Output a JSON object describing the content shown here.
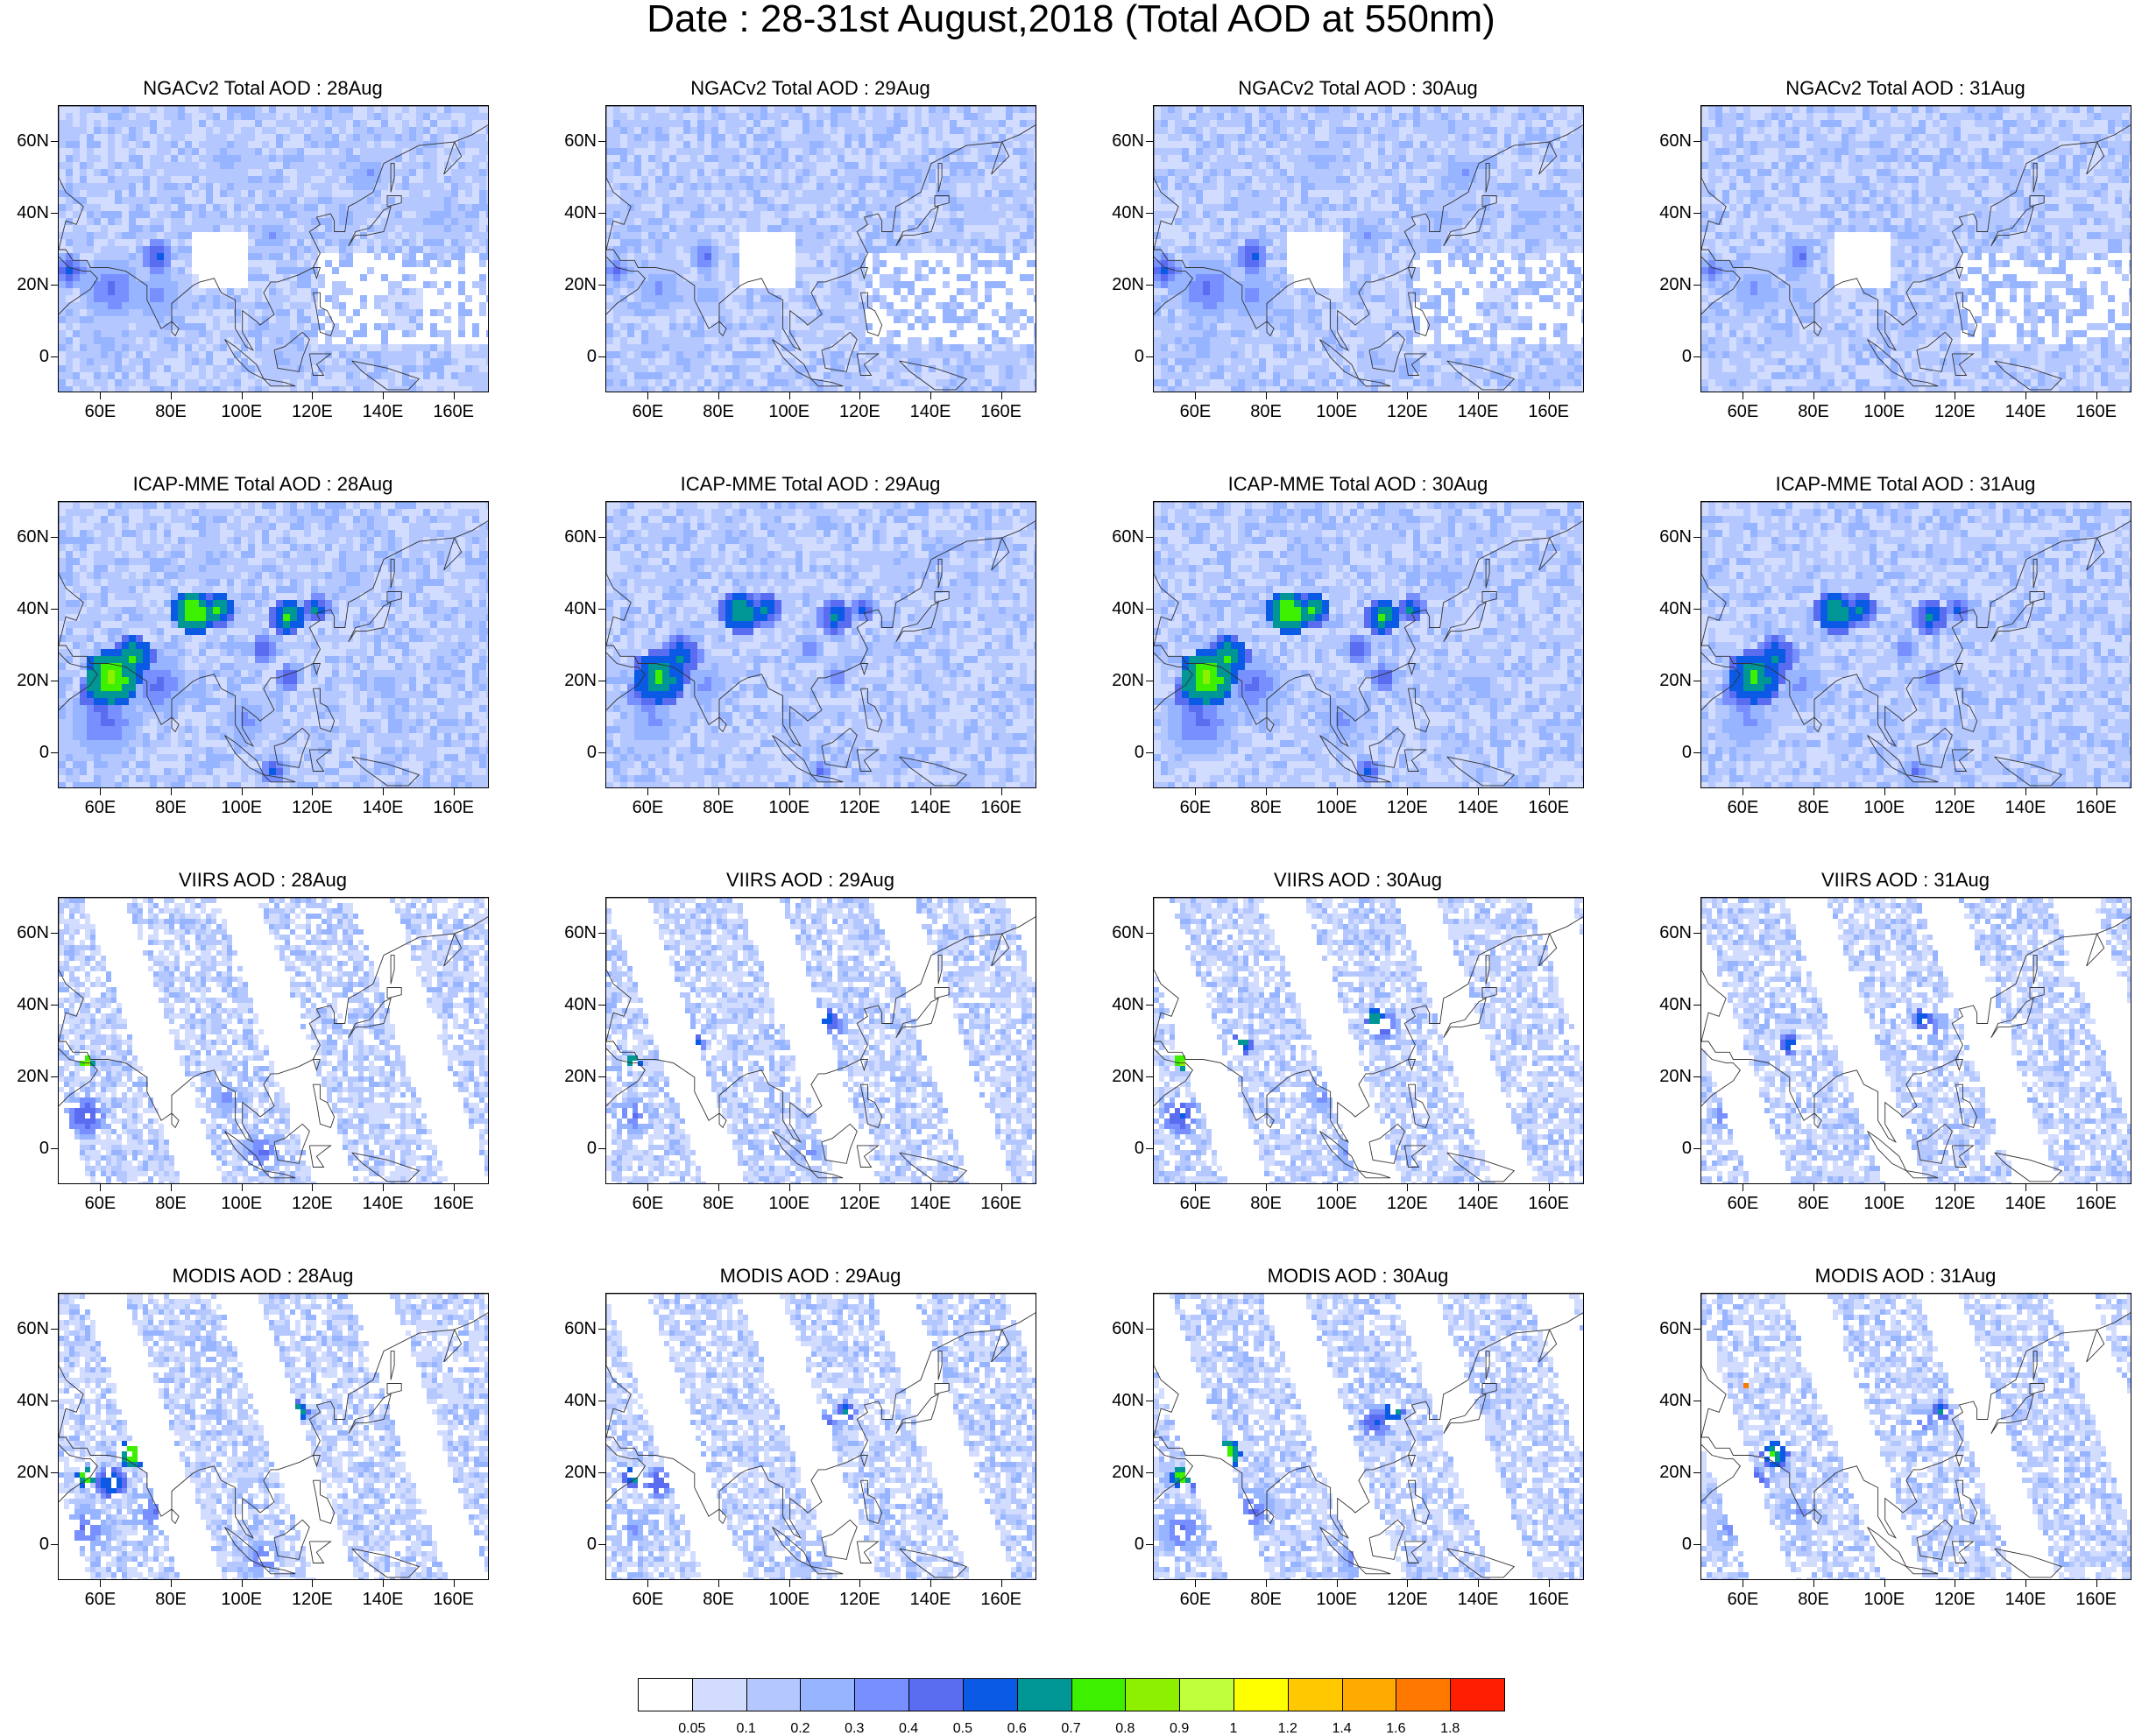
{
  "title": "Date : 28-31st August,2018 (Total AOD at 550nm)",
  "rows": [
    {
      "dataset": "NGACv2",
      "panels": [
        {
          "title": "NGACv2 Total AOD : 28Aug"
        },
        {
          "title": "NGACv2 Total AOD : 29Aug"
        },
        {
          "title": "NGACv2 Total AOD : 30Aug"
        },
        {
          "title": "NGACv2 Total AOD : 31Aug"
        }
      ]
    },
    {
      "dataset": "ICAP-MME",
      "panels": [
        {
          "title": "ICAP-MME Total AOD : 28Aug"
        },
        {
          "title": "ICAP-MME Total AOD : 29Aug"
        },
        {
          "title": "ICAP-MME Total AOD : 30Aug"
        },
        {
          "title": "ICAP-MME Total AOD : 31Aug"
        }
      ]
    },
    {
      "dataset": "VIIRS",
      "panels": [
        {
          "title": "VIIRS AOD : 28Aug"
        },
        {
          "title": "VIIRS AOD : 29Aug"
        },
        {
          "title": "VIIRS AOD : 30Aug"
        },
        {
          "title": "VIIRS AOD : 31Aug"
        }
      ]
    },
    {
      "dataset": "MODIS",
      "panels": [
        {
          "title": "MODIS AOD : 28Aug"
        },
        {
          "title": "MODIS AOD : 29Aug"
        },
        {
          "title": "MODIS AOD : 30Aug"
        },
        {
          "title": "MODIS AOD : 31Aug"
        }
      ]
    }
  ],
  "map_extent": {
    "lon": [
      48,
      170
    ],
    "lat": [
      -10,
      70
    ]
  },
  "lat_ticks": [
    {
      "value": 60,
      "label": "60N"
    },
    {
      "value": 40,
      "label": "40N"
    },
    {
      "value": 20,
      "label": "20N"
    },
    {
      "value": 0,
      "label": "0"
    }
  ],
  "lon_ticks": [
    {
      "value": 60,
      "label": "60E"
    },
    {
      "value": 80,
      "label": "80E"
    },
    {
      "value": 100,
      "label": "100E"
    },
    {
      "value": 120,
      "label": "120E"
    },
    {
      "value": 140,
      "label": "140E"
    },
    {
      "value": 160,
      "label": "160E"
    }
  ],
  "colorbar": {
    "colors": [
      "#ffffff",
      "#d2dcff",
      "#b4c8ff",
      "#96b4ff",
      "#7890ff",
      "#5a6cf0",
      "#0a5ae6",
      "#009696",
      "#3cf000",
      "#8cf000",
      "#c0ff3c",
      "#ffff00",
      "#ffc800",
      "#ffaa00",
      "#ff7800",
      "#ff1e00"
    ],
    "labels": [
      "0.05",
      "0.1",
      "0.2",
      "0.3",
      "0.4",
      "0.5",
      "0.6",
      "0.7",
      "0.8",
      "0.9",
      "1",
      "1.2",
      "1.4",
      "1.6",
      "1.8"
    ]
  },
  "hotspots": {
    "NGACv2": [
      {
        "lon": 50,
        "lat": 25,
        "level": 6,
        "r": 5
      },
      {
        "lon": 75,
        "lat": 29,
        "level": 6,
        "r": 5
      },
      {
        "lon": 62,
        "lat": 20,
        "level": 5,
        "r": 10
      },
      {
        "lon": 75,
        "lat": 18,
        "level": 4,
        "r": 12
      },
      {
        "lon": 108,
        "lat": 35,
        "level": 4,
        "r": 7
      },
      {
        "lon": 135,
        "lat": 52,
        "level": 4,
        "r": 8
      },
      {
        "lon": 128,
        "lat": 40,
        "level": 3,
        "r": 12
      },
      {
        "lon": 95,
        "lat": 55,
        "level": 3,
        "r": 14
      },
      {
        "lon": 60,
        "lat": 5,
        "level": 3,
        "r": 14
      },
      {
        "lon": 110,
        "lat": 0,
        "level": 3,
        "r": 12
      },
      {
        "lon": 145,
        "lat": 15,
        "level": 2,
        "r": 12
      },
      {
        "lon": 155,
        "lat": 40,
        "level": 3,
        "r": 14
      },
      {
        "lon": 80,
        "lat": 62,
        "level": 2,
        "r": 12
      }
    ],
    "ICAP-MME": [
      {
        "lon": 62,
        "lat": 22,
        "level": 9,
        "r": 8
      },
      {
        "lon": 68,
        "lat": 28,
        "level": 8,
        "r": 6
      },
      {
        "lon": 58,
        "lat": 18,
        "level": 7,
        "r": 6
      },
      {
        "lon": 85,
        "lat": 40,
        "level": 9,
        "r": 6
      },
      {
        "lon": 92,
        "lat": 41,
        "level": 8,
        "r": 5
      },
      {
        "lon": 112,
        "lat": 39,
        "level": 8,
        "r": 5
      },
      {
        "lon": 120,
        "lat": 41,
        "level": 7,
        "r": 4
      },
      {
        "lon": 105,
        "lat": 30,
        "level": 6,
        "r": 4
      },
      {
        "lon": 112,
        "lat": 22,
        "level": 6,
        "r": 4
      },
      {
        "lon": 108,
        "lat": -4,
        "level": 6,
        "r": 4
      },
      {
        "lon": 75,
        "lat": 20,
        "level": 5,
        "r": 10
      },
      {
        "lon": 60,
        "lat": 10,
        "level": 5,
        "r": 12
      },
      {
        "lon": 100,
        "lat": 10,
        "level": 4,
        "r": 10
      },
      {
        "lon": 140,
        "lat": 20,
        "level": 4,
        "r": 6
      },
      {
        "lon": 130,
        "lat": 50,
        "level": 3,
        "r": 12
      },
      {
        "lon": 90,
        "lat": 55,
        "level": 3,
        "r": 12
      }
    ],
    "VIIRS": [
      {
        "lon": 72,
        "lat": 30,
        "level": 8,
        "r": 3
      },
      {
        "lon": 110,
        "lat": 37,
        "level": 8,
        "r": 3
      },
      {
        "lon": 55,
        "lat": 25,
        "level": 10,
        "r": 2
      },
      {
        "lon": 112,
        "lat": 35,
        "level": 6,
        "r": 5
      },
      {
        "lon": 55,
        "lat": 10,
        "level": 6,
        "r": 6
      },
      {
        "lon": 105,
        "lat": 0,
        "level": 5,
        "r": 7
      },
      {
        "lon": 95,
        "lat": 15,
        "level": 4,
        "r": 8
      },
      {
        "lon": 130,
        "lat": 45,
        "level": 3,
        "r": 10
      },
      {
        "lon": 150,
        "lat": 10,
        "level": 2,
        "r": 12
      }
    ],
    "MODIS": [
      {
        "lon": 68,
        "lat": 26,
        "level": 9,
        "r": 4
      },
      {
        "lon": 55,
        "lat": 20,
        "level": 9,
        "r": 3
      },
      {
        "lon": 60,
        "lat": 45,
        "level": 15,
        "r": 1
      },
      {
        "lon": 115,
        "lat": 38,
        "level": 8,
        "r": 3
      },
      {
        "lon": 62,
        "lat": 18,
        "level": 7,
        "r": 5
      },
      {
        "lon": 110,
        "lat": 35,
        "level": 6,
        "r": 5
      },
      {
        "lon": 75,
        "lat": 10,
        "level": 5,
        "r": 8
      },
      {
        "lon": 55,
        "lat": 5,
        "level": 5,
        "r": 8
      },
      {
        "lon": 105,
        "lat": -3,
        "level": 5,
        "r": 6
      },
      {
        "lon": 90,
        "lat": 55,
        "level": 3,
        "r": 12
      },
      {
        "lon": 140,
        "lat": 45,
        "level": 3,
        "r": 10
      }
    ]
  }
}
